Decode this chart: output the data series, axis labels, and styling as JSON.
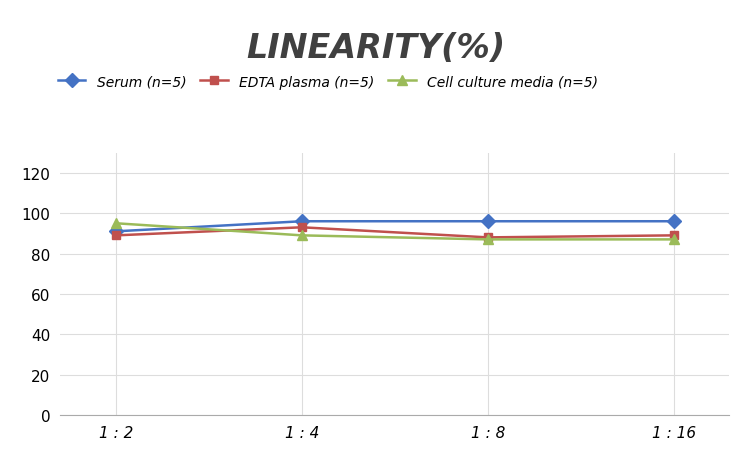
{
  "title": "LINEARITY(%)",
  "x_labels": [
    "1 : 2",
    "1 : 4",
    "1 : 8",
    "1 : 16"
  ],
  "x_positions": [
    0,
    1,
    2,
    3
  ],
  "series": [
    {
      "label": "Serum (n=5)",
      "values": [
        91,
        96,
        96,
        96
      ],
      "color": "#4472C4",
      "marker": "D",
      "markersize": 7,
      "linewidth": 1.8
    },
    {
      "label": "EDTA plasma (n=5)",
      "values": [
        89,
        93,
        88,
        89
      ],
      "color": "#C0504D",
      "marker": "s",
      "markersize": 6,
      "linewidth": 1.8
    },
    {
      "label": "Cell culture media (n=5)",
      "values": [
        95,
        89,
        87,
        87
      ],
      "color": "#9BBB59",
      "marker": "^",
      "markersize": 7,
      "linewidth": 1.8
    }
  ],
  "ylim": [
    0,
    130
  ],
  "yticks": [
    0,
    20,
    40,
    60,
    80,
    100,
    120
  ],
  "grid_color": "#DDDDDD",
  "background_color": "#FFFFFF",
  "title_fontsize": 24,
  "title_fontstyle": "italic",
  "title_fontweight": "bold",
  "legend_fontsize": 10,
  "tick_fontsize": 11,
  "title_color": "#404040"
}
